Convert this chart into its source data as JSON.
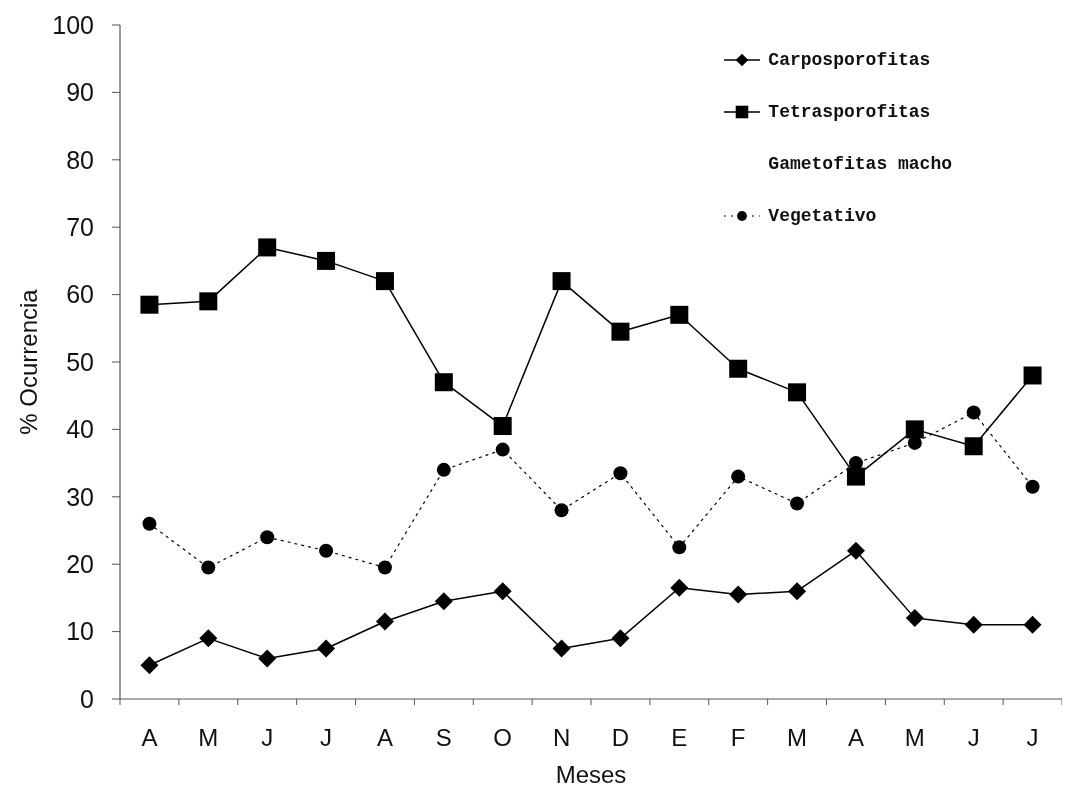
{
  "chart_data": {
    "type": "line",
    "xlabel": "Meses",
    "ylabel": "% Ocurrencia",
    "categories": [
      "A",
      "M",
      "J",
      "J",
      "A",
      "S",
      "O",
      "N",
      "D",
      "E",
      "F",
      "M",
      "A",
      "M",
      "J",
      "J"
    ],
    "ylim": [
      0,
      100
    ],
    "yticks": [
      0,
      10,
      20,
      30,
      40,
      50,
      60,
      70,
      80,
      90,
      100
    ],
    "legend": "top right",
    "series": [
      {
        "name": "Carposporofitas",
        "color": "#000000",
        "marker": "diamond",
        "line_style": "solid",
        "values": [
          5,
          9,
          6,
          7.5,
          11.5,
          14.5,
          16,
          7.5,
          9,
          16.5,
          15.5,
          16,
          22,
          12,
          11,
          11
        ]
      },
      {
        "name": "Tetrasporofitas",
        "color": "#000000",
        "marker": "square",
        "line_style": "solid",
        "values": [
          58.5,
          59,
          67,
          65,
          62,
          47,
          40.5,
          62,
          54.5,
          57,
          49,
          45.5,
          33,
          40,
          37.5,
          48
        ]
      },
      {
        "name": "Gametofitas macho",
        "marker": "none",
        "values": [
          null,
          null,
          null,
          null,
          null,
          null,
          null,
          null,
          null,
          null,
          null,
          null,
          null,
          null,
          null,
          null
        ]
      },
      {
        "name": "Vegetativo",
        "color": "#000000",
        "marker": "circle",
        "line_style": "dotted",
        "values": [
          26,
          19.5,
          24,
          22,
          19.5,
          34,
          37,
          28,
          33.5,
          22.5,
          33,
          29,
          35,
          38,
          42.5,
          31.5
        ]
      }
    ]
  }
}
